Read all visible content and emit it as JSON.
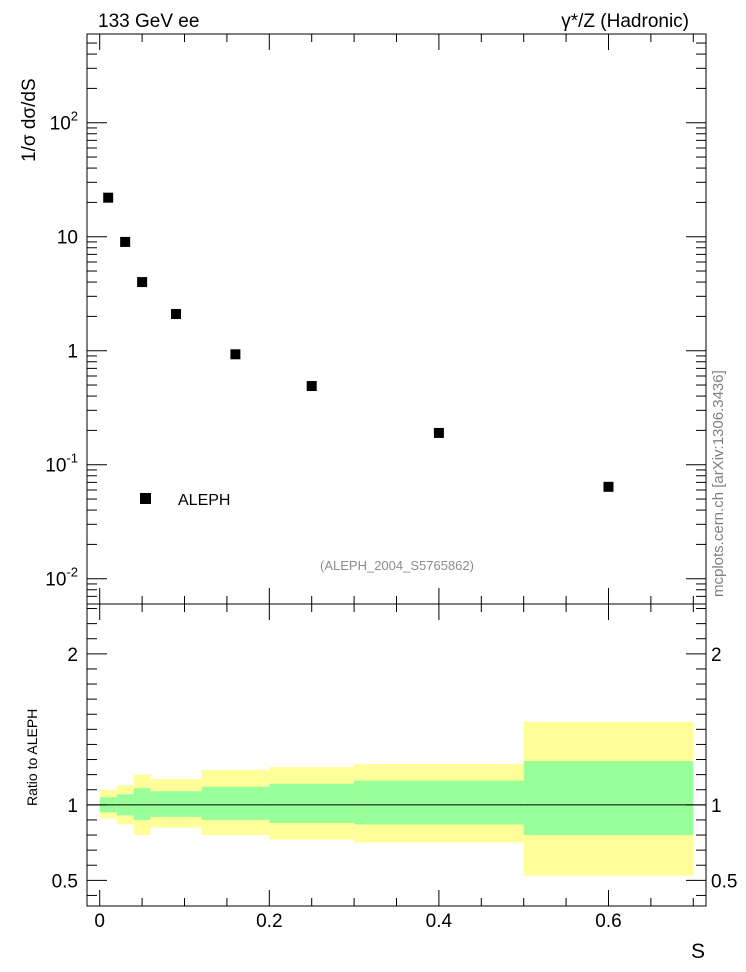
{
  "header": {
    "left": "133 GeV ee",
    "right": "γ*/Z (Hadronic)"
  },
  "side_label": "mcplots.cern.ch [arXiv:1306.3436]",
  "chart_data": [
    {
      "type": "scatter",
      "panel": "main",
      "ylabel": "1/σ  dσ/dS",
      "yscale": "log",
      "ylim": [
        0.006,
        600
      ],
      "xlim": [
        -0.015,
        0.715
      ],
      "y_tick_labels": [
        "10^-2",
        "10^-1",
        "1",
        "10",
        "10^2"
      ],
      "legend": {
        "position": "bottom-left",
        "entries": [
          "ALEPH"
        ]
      },
      "annotation": "(ALEPH_2004_S5765862)",
      "series": [
        {
          "name": "ALEPH",
          "marker": "square",
          "color": "#000000",
          "x": [
            0.01,
            0.03,
            0.05,
            0.09,
            0.16,
            0.25,
            0.4,
            0.6
          ],
          "y": [
            22,
            9.0,
            4.0,
            2.1,
            0.93,
            0.49,
            0.19,
            0.064
          ]
        }
      ]
    },
    {
      "type": "area",
      "panel": "ratio",
      "ylabel": "Ratio to ALEPH",
      "xlabel": "S",
      "ylim": [
        0.33,
        2.33
      ],
      "xlim": [
        -0.015,
        0.715
      ],
      "x_tick_labels": [
        "0",
        "0.2",
        "0.4",
        "0.6"
      ],
      "y_tick_labels": [
        "0.5",
        "1",
        "2"
      ],
      "reference_line": 1,
      "bin_edges": [
        0.0,
        0.02,
        0.04,
        0.06,
        0.12,
        0.2,
        0.3,
        0.5,
        0.7
      ],
      "bands": [
        {
          "name": "outer",
          "color": "#ffff99",
          "lower": [
            0.91,
            0.87,
            0.8,
            0.85,
            0.8,
            0.77,
            0.75,
            0.53
          ],
          "upper": [
            1.1,
            1.13,
            1.2,
            1.17,
            1.23,
            1.25,
            1.27,
            1.55
          ]
        },
        {
          "name": "inner",
          "color": "#99ff99",
          "lower": [
            0.95,
            0.93,
            0.9,
            0.92,
            0.9,
            0.88,
            0.87,
            0.8
          ],
          "upper": [
            1.05,
            1.07,
            1.11,
            1.09,
            1.12,
            1.14,
            1.16,
            1.29
          ]
        }
      ]
    }
  ]
}
